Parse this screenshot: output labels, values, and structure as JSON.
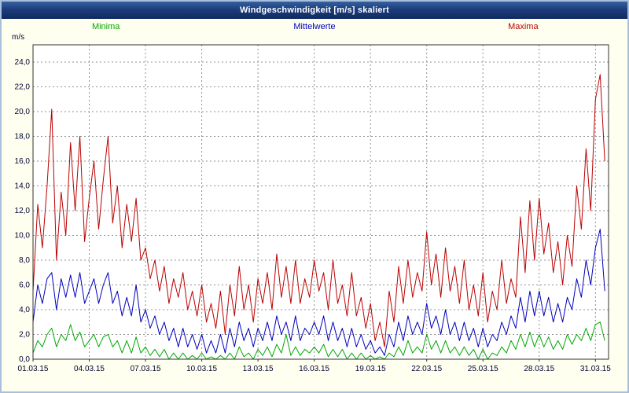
{
  "window": {
    "title": "Windgeschwindigkeit [m/s] skaliert"
  },
  "legend": [
    {
      "label": "Minima",
      "color": "#00a800"
    },
    {
      "label": "Mittelwerte",
      "color": "#0000bb"
    },
    {
      "label": "Maxima",
      "color": "#bb0000"
    }
  ],
  "axis": {
    "unit": "m/s"
  },
  "chart_data": {
    "type": "line",
    "title": "Windgeschwindigkeit [m/s] skaliert",
    "ylabel": "m/s",
    "xlabel": "",
    "grid": "dashed",
    "plot_background": "#ffffff",
    "grid_color": "#909090",
    "border_color": "#303030",
    "tick_text_color": "#000033",
    "ylim": [
      0,
      25.4
    ],
    "xlim": [
      0,
      30.7
    ],
    "x_unit": "days since 01.03.15",
    "sample_interval_days": 0.25,
    "yticks": [
      {
        "value": 24,
        "label": "24,0"
      },
      {
        "value": 22,
        "label": "22,0"
      },
      {
        "value": 20,
        "label": "20,0"
      },
      {
        "value": 18,
        "label": "18,0"
      },
      {
        "value": 16,
        "label": "16,0"
      },
      {
        "value": 14,
        "label": "14,0"
      },
      {
        "value": 12,
        "label": "12,0"
      },
      {
        "value": 10,
        "label": "10,0"
      },
      {
        "value": 8,
        "label": "8,0"
      },
      {
        "value": 6,
        "label": "6,0"
      },
      {
        "value": 4,
        "label": "4,0"
      },
      {
        "value": 2,
        "label": "2,0"
      },
      {
        "value": 0,
        "label": "0,0"
      }
    ],
    "x_ticks": [
      {
        "t": 0,
        "label": "01.03.15"
      },
      {
        "t": 3,
        "label": "04.03.15"
      },
      {
        "t": 6,
        "label": "07.03.15"
      },
      {
        "t": 9,
        "label": "10.03.15"
      },
      {
        "t": 12,
        "label": "13.03.15"
      },
      {
        "t": 15,
        "label": "16.03.15"
      },
      {
        "t": 18,
        "label": "19.03.15"
      },
      {
        "t": 21,
        "label": "22.03.15"
      },
      {
        "t": 24,
        "label": "25.03.15"
      },
      {
        "t": 27,
        "label": "28.03.15"
      },
      {
        "t": 30,
        "label": "31.03.15"
      }
    ],
    "series": [
      {
        "name": "Minima",
        "color": "#00a800",
        "values": [
          0.5,
          1.5,
          1.0,
          2.0,
          2.5,
          1.0,
          2.0,
          1.5,
          2.8,
          1.5,
          2.2,
          1.0,
          1.5,
          2.0,
          1.0,
          1.8,
          2.0,
          1.0,
          1.5,
          0.5,
          1.5,
          0.5,
          1.8,
          0.5,
          1.0,
          0.3,
          0.8,
          0.2,
          0.8,
          0.0,
          0.5,
          0.0,
          0.5,
          0.0,
          0.3,
          0.0,
          0.5,
          0.0,
          0.2,
          0.0,
          0.3,
          0.0,
          0.5,
          0.0,
          1.0,
          0.2,
          0.5,
          0.0,
          0.8,
          0.3,
          1.0,
          0.2,
          1.2,
          0.5,
          2.0,
          0.3,
          1.0,
          0.3,
          0.8,
          0.5,
          1.0,
          0.5,
          1.2,
          0.2,
          0.8,
          0.2,
          0.8,
          0.0,
          0.5,
          0.0,
          0.5,
          0.0,
          0.3,
          0.0,
          0.2,
          0.0,
          0.5,
          0.2,
          1.0,
          0.3,
          1.5,
          0.5,
          1.0,
          0.5,
          2.0,
          0.8,
          1.5,
          0.5,
          1.5,
          0.5,
          1.0,
          0.3,
          1.0,
          0.3,
          0.8,
          0.0,
          0.8,
          0.0,
          0.5,
          0.3,
          1.0,
          0.5,
          1.5,
          0.8,
          2.0,
          1.0,
          2.2,
          1.0,
          2.0,
          1.0,
          1.8,
          0.8,
          1.5,
          0.8,
          2.0,
          1.2,
          2.0,
          1.5,
          2.5,
          1.5,
          2.8,
          3.0,
          1.5
        ]
      },
      {
        "name": "Mittelwerte",
        "color": "#0000bb",
        "values": [
          3.0,
          6.0,
          4.5,
          6.5,
          7.0,
          4.0,
          6.5,
          5.0,
          6.8,
          5.0,
          7.0,
          4.5,
          5.5,
          6.5,
          4.5,
          6.0,
          7.0,
          4.5,
          5.5,
          3.5,
          5.0,
          3.5,
          6.0,
          3.0,
          4.0,
          2.5,
          3.5,
          2.0,
          3.0,
          1.5,
          2.5,
          1.0,
          2.5,
          1.0,
          2.0,
          0.8,
          2.0,
          0.5,
          1.5,
          0.5,
          2.0,
          0.5,
          2.5,
          1.0,
          3.0,
          1.5,
          2.5,
          1.0,
          2.5,
          1.5,
          3.0,
          1.5,
          3.5,
          2.0,
          3.0,
          1.5,
          3.5,
          1.5,
          2.5,
          2.0,
          3.0,
          2.0,
          3.5,
          1.5,
          3.0,
          1.5,
          2.5,
          1.0,
          2.5,
          1.0,
          2.0,
          0.8,
          1.5,
          0.5,
          1.0,
          0.3,
          2.0,
          1.0,
          3.0,
          1.5,
          3.5,
          2.0,
          3.0,
          2.0,
          4.5,
          2.5,
          3.5,
          2.0,
          4.0,
          2.0,
          3.0,
          1.5,
          3.0,
          1.5,
          2.5,
          1.0,
          2.5,
          1.0,
          2.0,
          1.5,
          3.0,
          2.0,
          3.5,
          2.5,
          5.0,
          3.0,
          5.5,
          3.5,
          5.5,
          3.5,
          5.0,
          3.0,
          4.5,
          3.0,
          5.0,
          4.0,
          6.5,
          5.0,
          8.0,
          6.0,
          9.0,
          10.5,
          5.5
        ]
      },
      {
        "name": "Maxima",
        "color": "#bb0000",
        "values": [
          5.5,
          12.5,
          9.0,
          14.0,
          20.2,
          8.0,
          13.5,
          10.0,
          17.5,
          12.0,
          18.0,
          9.5,
          13.0,
          16.0,
          10.5,
          14.5,
          18.0,
          11.0,
          14.0,
          9.0,
          12.5,
          9.5,
          13.0,
          8.0,
          9.0,
          6.5,
          8.0,
          5.5,
          7.5,
          4.5,
          6.5,
          5.0,
          7.0,
          4.0,
          5.5,
          3.5,
          6.0,
          3.0,
          4.5,
          2.5,
          5.5,
          2.0,
          6.0,
          3.5,
          7.5,
          4.0,
          6.0,
          3.0,
          6.5,
          4.5,
          7.0,
          4.0,
          8.5,
          5.0,
          7.5,
          4.5,
          8.0,
          4.5,
          6.5,
          5.0,
          8.0,
          5.5,
          7.0,
          4.0,
          8.0,
          4.5,
          6.0,
          3.5,
          7.0,
          3.5,
          5.0,
          2.5,
          4.5,
          1.5,
          3.0,
          1.0,
          5.5,
          3.0,
          7.5,
          4.5,
          8.0,
          5.0,
          7.0,
          5.5,
          10.3,
          6.0,
          8.5,
          5.0,
          9.0,
          5.5,
          7.5,
          4.5,
          8.0,
          4.0,
          6.0,
          3.5,
          7.0,
          3.0,
          5.5,
          4.0,
          8.0,
          4.5,
          6.5,
          5.0,
          11.5,
          7.0,
          12.8,
          8.0,
          13.0,
          8.5,
          11.0,
          7.0,
          9.5,
          6.0,
          10.0,
          7.5,
          14.0,
          10.5,
          17.0,
          12.0,
          21.0,
          23.0,
          16.0
        ]
      }
    ]
  }
}
